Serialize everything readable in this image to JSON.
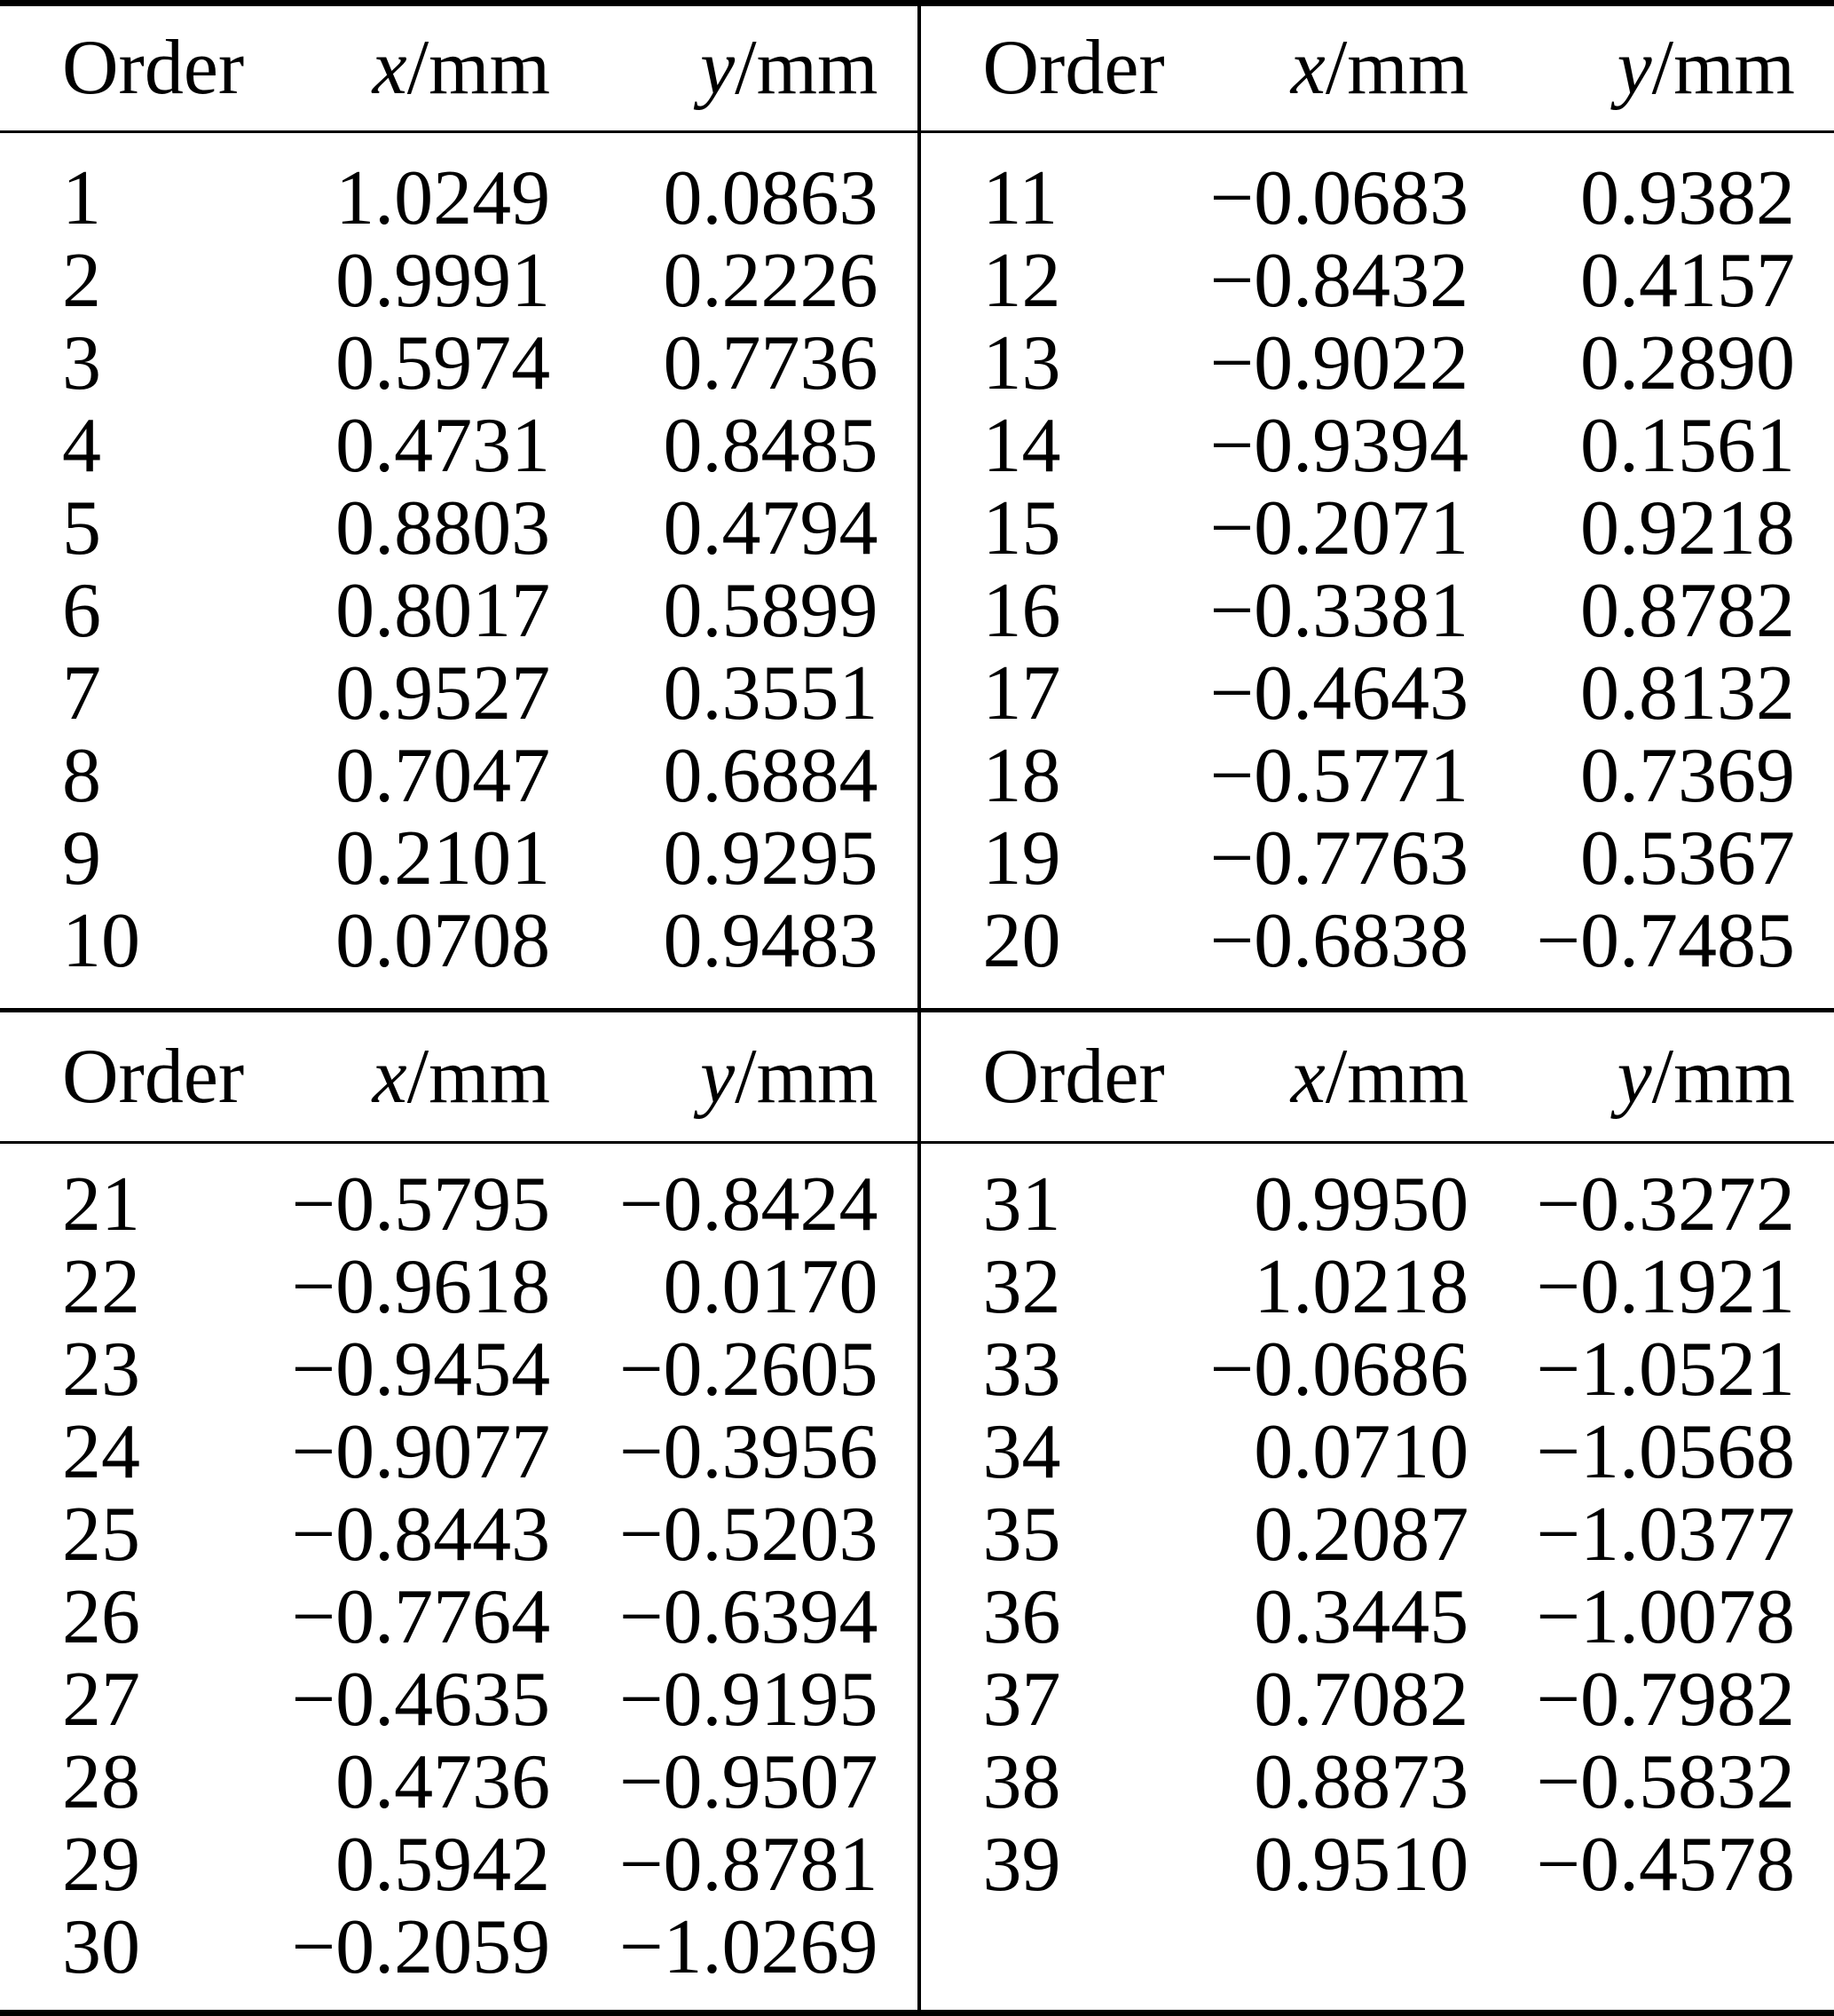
{
  "style": {
    "background": "#ffffff",
    "text_color": "#000000",
    "rule_color": "#000000"
  },
  "table1": {
    "header": {
      "order": "Order",
      "x_var": "x",
      "x_unit": "/mm",
      "y_var": "y",
      "y_unit": "/mm"
    },
    "left_rows": [
      {
        "order": "1",
        "x": "1.0249",
        "y": "0.0863"
      },
      {
        "order": "2",
        "x": "0.9991",
        "y": "0.2226"
      },
      {
        "order": "3",
        "x": "0.5974",
        "y": "0.7736"
      },
      {
        "order": "4",
        "x": "0.4731",
        "y": "0.8485"
      },
      {
        "order": "5",
        "x": "0.8803",
        "y": "0.4794"
      },
      {
        "order": "6",
        "x": "0.8017",
        "y": "0.5899"
      },
      {
        "order": "7",
        "x": "0.9527",
        "y": "0.3551"
      },
      {
        "order": "8",
        "x": "0.7047",
        "y": "0.6884"
      },
      {
        "order": "9",
        "x": "0.2101",
        "y": "0.9295"
      },
      {
        "order": "10",
        "x": "0.0708",
        "y": "0.9483"
      }
    ],
    "right_rows": [
      {
        "order": "11",
        "x": "−0.0683",
        "y": "0.9382"
      },
      {
        "order": "12",
        "x": "−0.8432",
        "y": "0.4157"
      },
      {
        "order": "13",
        "x": "−0.9022",
        "y": "0.2890"
      },
      {
        "order": "14",
        "x": "−0.9394",
        "y": "0.1561"
      },
      {
        "order": "15",
        "x": "−0.2071",
        "y": "0.9218"
      },
      {
        "order": "16",
        "x": "−0.3381",
        "y": "0.8782"
      },
      {
        "order": "17",
        "x": "−0.4643",
        "y": "0.8132"
      },
      {
        "order": "18",
        "x": "−0.5771",
        "y": "0.7369"
      },
      {
        "order": "19",
        "x": "−0.7763",
        "y": "0.5367"
      },
      {
        "order": "20",
        "x": "−0.6838",
        "y": "−0.7485"
      }
    ]
  },
  "table2": {
    "header": {
      "order": "Order",
      "x_var": "x",
      "x_unit": "/mm",
      "y_var": "y",
      "y_unit": "/mm"
    },
    "left_rows": [
      {
        "order": "21",
        "x": "−0.5795",
        "y": "−0.8424"
      },
      {
        "order": "22",
        "x": "−0.9618",
        "y": "0.0170"
      },
      {
        "order": "23",
        "x": "−0.9454",
        "y": "−0.2605"
      },
      {
        "order": "24",
        "x": "−0.9077",
        "y": "−0.3956"
      },
      {
        "order": "25",
        "x": "−0.8443",
        "y": "−0.5203"
      },
      {
        "order": "26",
        "x": "−0.7764",
        "y": "−0.6394"
      },
      {
        "order": "27",
        "x": "−0.4635",
        "y": "−0.9195"
      },
      {
        "order": "28",
        "x": "0.4736",
        "y": "−0.9507"
      },
      {
        "order": "29",
        "x": "0.5942",
        "y": "−0.8781"
      },
      {
        "order": "30",
        "x": "−0.2059",
        "y": "−1.0269"
      }
    ],
    "right_rows": [
      {
        "order": "31",
        "x": "0.9950",
        "y": "−0.3272"
      },
      {
        "order": "32",
        "x": "1.0218",
        "y": "−0.1921"
      },
      {
        "order": "33",
        "x": "−0.0686",
        "y": "−1.0521"
      },
      {
        "order": "34",
        "x": "0.0710",
        "y": "−1.0568"
      },
      {
        "order": "35",
        "x": "0.2087",
        "y": "−1.0377"
      },
      {
        "order": "36",
        "x": "0.3445",
        "y": "−1.0078"
      },
      {
        "order": "37",
        "x": "0.7082",
        "y": "−0.7982"
      },
      {
        "order": "38",
        "x": "0.8873",
        "y": "−0.5832"
      },
      {
        "order": "39",
        "x": "0.9510",
        "y": "−0.4578"
      }
    ]
  }
}
